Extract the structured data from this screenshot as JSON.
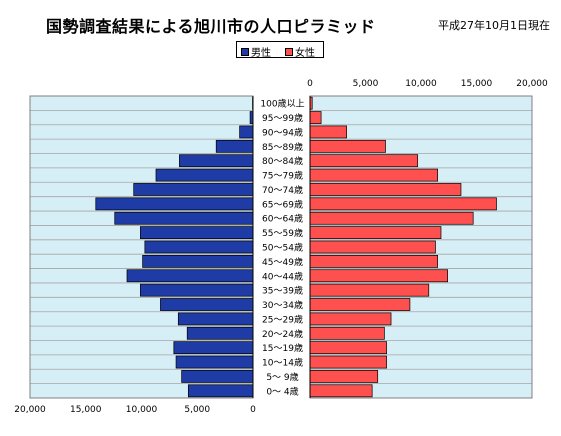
{
  "header": {
    "title": "国勢調査結果による旭川市の人口ピラミッド",
    "date": "平成27年10月1日現在"
  },
  "colors": {
    "male": "#1f3ca6",
    "female": "#ff5050",
    "plot_bg": "#d6eef5",
    "grid": "#a6a6a6"
  },
  "chart_data": {
    "type": "bar",
    "orientation": "horizontal",
    "title": "国勢調査結果による旭川市の人口ピラミッド",
    "legend": {
      "position": "top-center",
      "entries": [
        "男性",
        "女性"
      ]
    },
    "categories": [
      "100歳以上",
      "95～99歳",
      "90～94歳",
      "85～89歳",
      "80～84歳",
      "75～79歳",
      "70～74歳",
      "65～69歳",
      "60～64歳",
      "55～59歳",
      "50～54歳",
      "45～49歳",
      "40～44歳",
      "35～39歳",
      "30～34歳",
      "25～29歳",
      "20～24歳",
      "15～19歳",
      "10～14歳",
      "5～ 9歳",
      "0～ 4歳"
    ],
    "series": [
      {
        "name": "男性",
        "values": [
          40,
          260,
          1200,
          3300,
          6600,
          8700,
          10700,
          14100,
          12400,
          10100,
          9700,
          9900,
          11300,
          10100,
          8300,
          6700,
          5900,
          7100,
          6900,
          6400,
          5800
        ]
      },
      {
        "name": "女性",
        "values": [
          200,
          1000,
          3300,
          6800,
          9700,
          11500,
          13600,
          16800,
          14700,
          11800,
          11300,
          11500,
          12400,
          10700,
          9000,
          7300,
          6700,
          6900,
          6900,
          6100,
          5600
        ]
      }
    ],
    "male_axis": {
      "ticks": [
        "20,000",
        "15,000",
        "10,000",
        "5,000",
        "0"
      ],
      "xlim": [
        0,
        20000
      ]
    },
    "female_axis": {
      "ticks": [
        "0",
        "5,000",
        "10,000",
        "15,000",
        "20,000"
      ],
      "xlim": [
        0,
        20000
      ]
    },
    "grid": true
  }
}
